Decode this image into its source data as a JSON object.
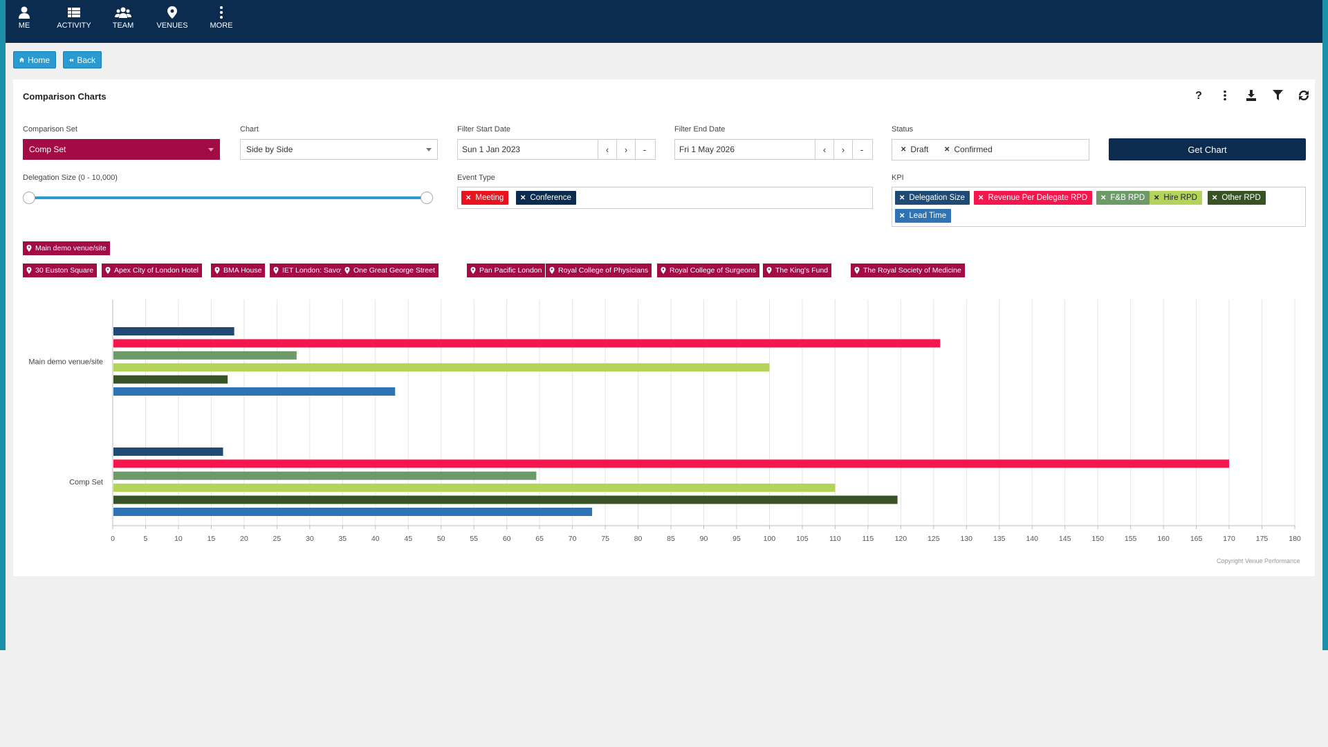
{
  "nav": [
    {
      "label": "ME",
      "icon": "user-icon"
    },
    {
      "label": "ACTIVITY",
      "icon": "list-icon"
    },
    {
      "label": "TEAM",
      "icon": "team-icon"
    },
    {
      "label": "VENUES",
      "icon": "map-pin-icon"
    },
    {
      "label": "MORE",
      "icon": "more-vertical-icon"
    }
  ],
  "buttons": {
    "home": "Home",
    "back": "Back"
  },
  "panel": {
    "title": "Comparison Charts",
    "tools": [
      "help-icon",
      "more-vertical-icon",
      "download-icon",
      "filter-icon",
      "refresh-icon"
    ]
  },
  "form": {
    "comparison_set_label": "Comparison Set",
    "comparison_set_value": "Comp Set",
    "chart_label": "Chart",
    "chart_value": "Side by Side",
    "start_label": "Filter Start Date",
    "start_value": "Sun 1 Jan 2023",
    "end_label": "Filter End Date",
    "end_value": "Fri 1 May 2026",
    "date_prev": "‹",
    "date_next": "›",
    "date_clear": "-",
    "status_label": "Status",
    "status_tags": [
      "Draft",
      "Confirmed"
    ],
    "get_chart": "Get Chart",
    "delegation_label": "Delegation Size (0 - 10,000)",
    "delegation_range": [
      0,
      10000
    ],
    "event_type_label": "Event Type",
    "event_tags": [
      {
        "label": "Meeting",
        "color": "#e8131d"
      },
      {
        "label": "Conference",
        "color": "#0b2b4f"
      }
    ],
    "kpi_label": "KPI",
    "kpi_tags": [
      {
        "label": "Delegation Size",
        "color": "#1e4a73"
      },
      {
        "label": "Revenue Per Delegate RPD",
        "color": "#f5164e"
      },
      {
        "label": "F&B RPD",
        "color": "#6d9a68"
      },
      {
        "label": "Hire RPD",
        "color": "#b4d35b"
      },
      {
        "label": "Other RPD",
        "color": "#375326"
      },
      {
        "label": "Lead Time",
        "color": "#2e73b3"
      }
    ]
  },
  "venues": {
    "main": "Main demo venue/site",
    "comp": [
      "30 Euston Square",
      "Apex City of London Hotel",
      "BMA House",
      "IET London: Savoy Place",
      "One Great George Street",
      "Pan Pacific London",
      "Royal College of Physicians",
      "Royal College of Surgeons",
      "The King's Fund",
      "The Royal Society of Medicine"
    ]
  },
  "chart_data": {
    "type": "bar",
    "orientation": "horizontal",
    "categories": [
      "Main demo venue/site",
      "Comp Set"
    ],
    "series": [
      {
        "name": "Delegation Size",
        "color": "#1e4a73",
        "values": [
          18.5,
          16.8
        ]
      },
      {
        "name": "Revenue Per Delegate RPD",
        "color": "#f5164e",
        "values": [
          126,
          170
        ]
      },
      {
        "name": "F&B RPD",
        "color": "#6d9a68",
        "values": [
          28,
          64.5
        ]
      },
      {
        "name": "Hire RPD",
        "color": "#b4d35b",
        "values": [
          100,
          110
        ]
      },
      {
        "name": "Other RPD",
        "color": "#375326",
        "values": [
          17.5,
          119.5
        ]
      },
      {
        "name": "Lead Time",
        "color": "#2e73b3",
        "values": [
          43,
          73
        ]
      }
    ],
    "xlim": [
      0,
      180
    ],
    "xticks": [
      0,
      5,
      10,
      15,
      20,
      25,
      30,
      35,
      40,
      45,
      50,
      55,
      60,
      65,
      70,
      75,
      80,
      85,
      90,
      95,
      100,
      105,
      110,
      115,
      120,
      125,
      130,
      135,
      140,
      145,
      150,
      155,
      160,
      165,
      170,
      175,
      180
    ],
    "grid": true,
    "copyright": "Copyright Venue Performance"
  }
}
